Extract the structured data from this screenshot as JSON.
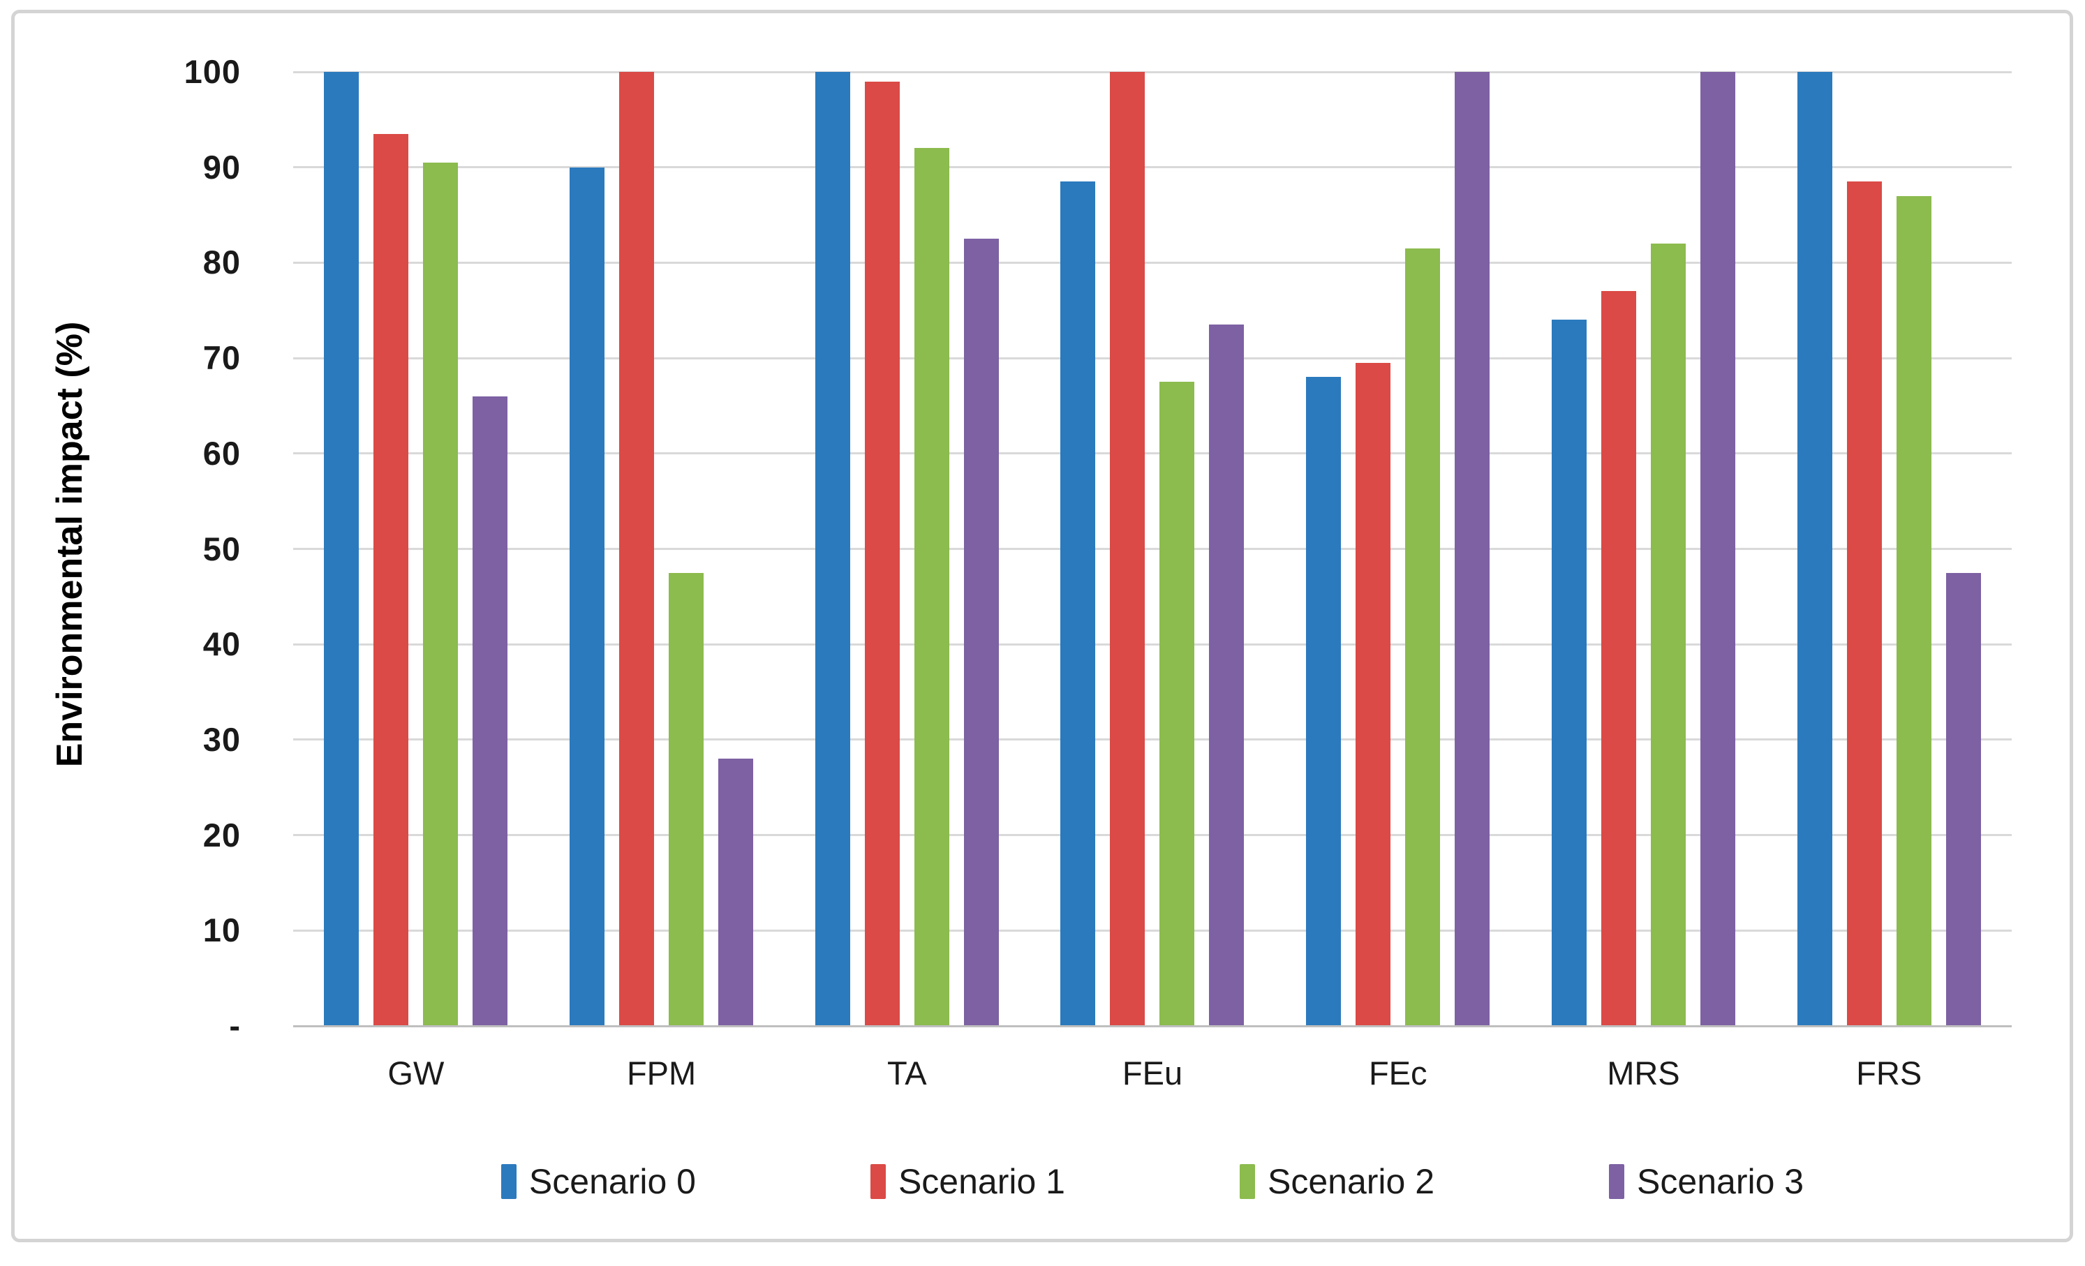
{
  "figure": {
    "background": "#ffffff",
    "border_color": "#d4d4d4"
  },
  "chart_data": {
    "type": "bar",
    "title": "",
    "xlabel": "",
    "ylabel": "Environmental impact (%)",
    "ylim": [
      0,
      100
    ],
    "grid": true,
    "gridline_color": "#d9d9d9",
    "axis_line_color": "#bfbfbf",
    "legend_position": "bottom",
    "ytick_labels": [
      "100",
      "90",
      "80",
      "70",
      "60",
      "50",
      "40",
      "30",
      "20",
      "10",
      "-"
    ],
    "ytick_values": [
      100,
      90,
      80,
      70,
      60,
      50,
      40,
      30,
      20,
      10,
      0
    ],
    "categories": [
      "GW",
      "FPM",
      "TA",
      "FEu",
      "FEc",
      "MRS",
      "FRS"
    ],
    "series": [
      {
        "name": "Scenario 0",
        "color": "#2b7abd",
        "values": [
          100,
          90,
          100,
          88.5,
          68,
          74,
          100
        ]
      },
      {
        "name": "Scenario 1",
        "color": "#db4a46",
        "values": [
          93.5,
          100,
          99,
          100,
          69.5,
          77,
          88.5
        ]
      },
      {
        "name": "Scenario 2",
        "color": "#8cbb4e",
        "values": [
          90.5,
          47.5,
          92,
          67.5,
          81.5,
          82,
          87
        ]
      },
      {
        "name": "Scenario 3",
        "color": "#7d61a3",
        "values": [
          66,
          28,
          82.5,
          73.5,
          100,
          100,
          47.5
        ]
      }
    ]
  }
}
